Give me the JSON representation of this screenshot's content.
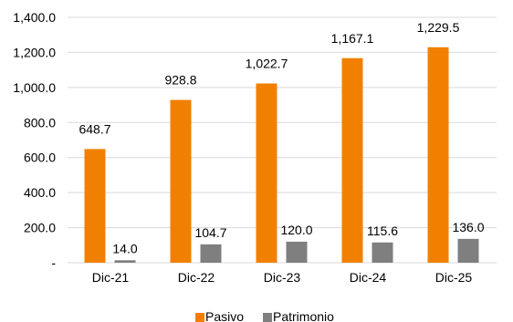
{
  "chart_data": {
    "type": "bar",
    "title": "",
    "xlabel": "",
    "ylabel": "",
    "categories": [
      "Dic-21",
      "Dic-22",
      "Dic-23",
      "Dic-24",
      "Dic-25"
    ],
    "series": [
      {
        "name": "Pasivo",
        "values": [
          648.7,
          928.8,
          1022.7,
          1167.1,
          1229.5
        ],
        "labels": [
          "648.7",
          "928.8",
          "1,022.7",
          "1,167.1",
          "1,229.5"
        ],
        "color": "#F28000"
      },
      {
        "name": "Patrimonio",
        "values": [
          14.0,
          104.7,
          120.0,
          115.6,
          136.0
        ],
        "labels": [
          "14.0",
          "104.7",
          "120.0",
          "115.6",
          "136.0"
        ],
        "color": "#7F7F7F"
      }
    ],
    "ylim": [
      0,
      1400
    ],
    "yticks": [
      0,
      200,
      400,
      600,
      800,
      1000,
      1200,
      1400
    ],
    "ytick_labels": [
      "-",
      "200.0",
      "400.0",
      "600.0",
      "800.0",
      "1,000.0",
      "1,200.0",
      "1,400.0"
    ],
    "grid": true,
    "legend_position": "bottom"
  }
}
